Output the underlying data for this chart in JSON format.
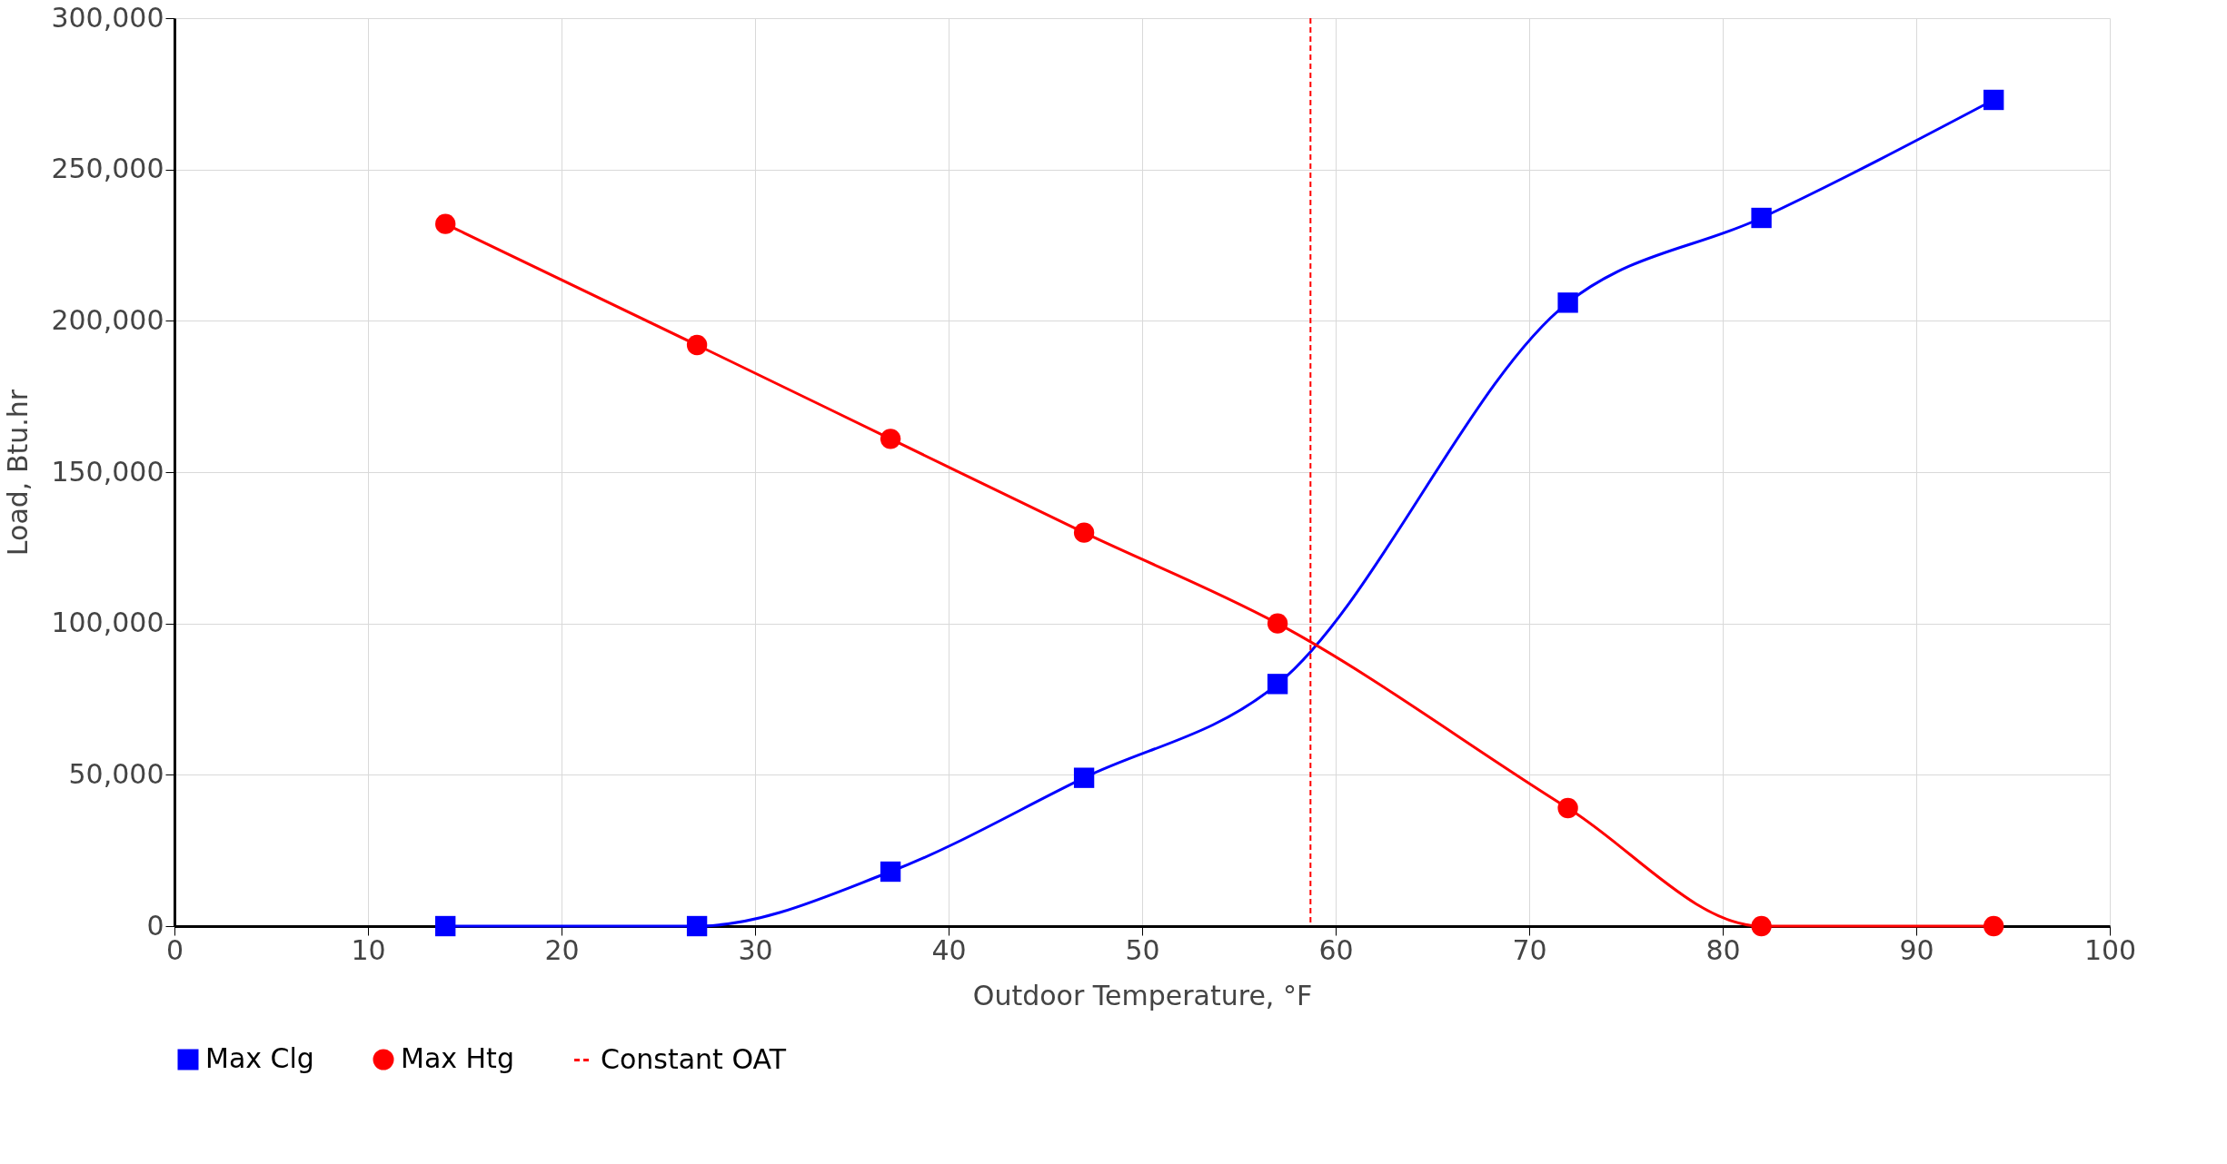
{
  "chart_data": {
    "type": "line",
    "xlabel": "Outdoor Temperature, °F",
    "ylabel": "Load, Btu.hr",
    "x": [
      14,
      27,
      37,
      47,
      57,
      72,
      82,
      94
    ],
    "series": [
      {
        "name": "Max Clg",
        "color": "#0000ff",
        "marker": "square",
        "values": [
          0,
          0,
          18000,
          49000,
          80000,
          206000,
          234000,
          273000
        ]
      },
      {
        "name": "Max Htg",
        "color": "#ff0000",
        "marker": "circle",
        "values": [
          232000,
          192000,
          161000,
          130000,
          100000,
          39000,
          0,
          0
        ]
      }
    ],
    "ref_lines": [
      {
        "axis": "x",
        "value": 58.7,
        "label": "Constant OAT",
        "color": "#ff0000",
        "line_style": "dashed"
      }
    ],
    "xlim": [
      0,
      100
    ],
    "xticks": [
      0,
      10,
      20,
      30,
      40,
      50,
      60,
      70,
      80,
      90,
      100
    ],
    "ylim": [
      0,
      300000
    ],
    "yticks": [
      0,
      {
        "value": 50000,
        "label": "50,000"
      },
      {
        "value": 100000,
        "label": "100,000"
      },
      {
        "value": 150000,
        "label": "150,000"
      },
      {
        "value": 200000,
        "label": "200,000"
      },
      {
        "value": 250000,
        "label": "250,000"
      },
      {
        "value": 300000,
        "label": "300,000"
      }
    ],
    "grid": true,
    "legend": "bottom",
    "line_style": "solid"
  }
}
